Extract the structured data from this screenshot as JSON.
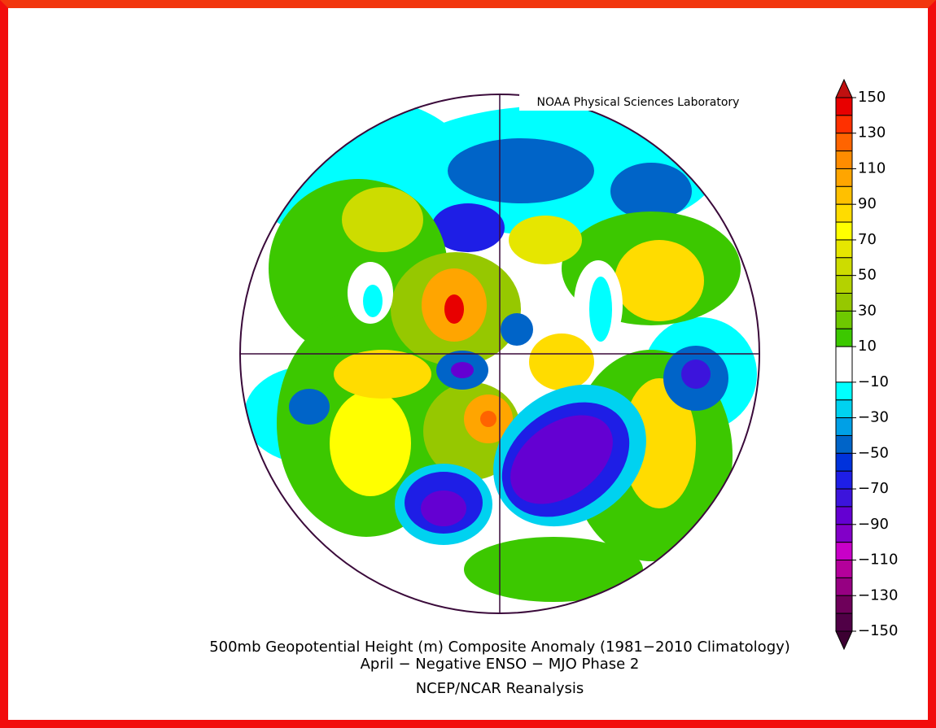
{
  "credit": "NOAA Physical Sciences Laboratory",
  "title": "500mb Geopotential Height (m) Composite Anomaly (1981−2010 Climatology)",
  "subtitle": "April − Negative ENSO − MJO Phase 2",
  "source": "NCEP/NCAR Reanalysis",
  "colorbar": {
    "ticks": [
      150,
      130,
      110,
      90,
      70,
      50,
      30,
      10,
      {
        "value": -10,
        "label": "−10"
      },
      {
        "value": -30,
        "label": "−30"
      },
      {
        "value": -50,
        "label": "−50"
      },
      {
        "value": -70,
        "label": "−70"
      },
      {
        "value": -90,
        "label": "−90"
      },
      {
        "value": -110,
        "label": "−110"
      },
      {
        "value": -130,
        "label": "−130"
      },
      {
        "value": -150,
        "label": "−150"
      }
    ],
    "over_color": "#c01010",
    "under_color": "#3c0032",
    "colors": [
      [
        "#e80000",
        "#ff3000"
      ],
      [
        "#ff6400",
        "#ff8c00"
      ],
      [
        "#ffa500",
        "#ffc000"
      ],
      [
        "#ffdc00",
        "#ffff00"
      ],
      [
        "#e6e600",
        "#cddc00"
      ],
      [
        "#b4d200",
        "#96c800"
      ],
      [
        "#6ec800",
        "#3cc800"
      ],
      [
        "#ffffff"
      ],
      [
        "#00ffff",
        "#00d2f0"
      ],
      [
        "#00a0e6",
        "#0064c8"
      ],
      [
        "#0032dc",
        "#1e1ee6"
      ],
      [
        "#3c14dc",
        "#6400d2"
      ],
      [
        "#8200c8",
        "#c800c8"
      ],
      [
        "#b4009b",
        "#960082"
      ],
      [
        "#6e005a",
        "#500046"
      ]
    ]
  }
}
